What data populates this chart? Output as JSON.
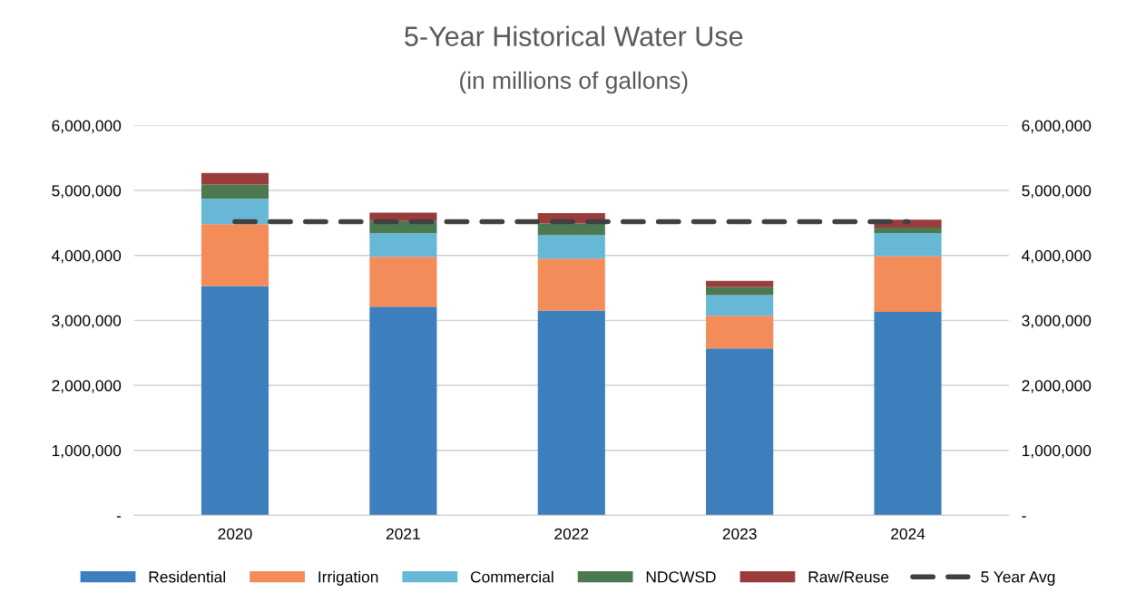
{
  "chart_data": {
    "type": "bar",
    "stacked": true,
    "title": "5-Year Historical Water Use",
    "subtitle": "(in millions of gallons)",
    "categories": [
      "2020",
      "2021",
      "2022",
      "2023",
      "2024"
    ],
    "series": [
      {
        "name": "Residential",
        "color": "#3d7ebd",
        "values": [
          3530000,
          3210000,
          3150000,
          2570000,
          3130000
        ]
      },
      {
        "name": "Irrigation",
        "color": "#f38c59",
        "values": [
          950000,
          770000,
          800000,
          500000,
          860000
        ]
      },
      {
        "name": "Commercial",
        "color": "#67b8d6",
        "values": [
          390000,
          360000,
          360000,
          320000,
          350000
        ]
      },
      {
        "name": "NDCWSD",
        "color": "#4c7a50",
        "values": [
          220000,
          190000,
          180000,
          120000,
          90000
        ]
      },
      {
        "name": "Raw/Reuse",
        "color": "#9a3c3c",
        "values": [
          180000,
          130000,
          160000,
          100000,
          120000
        ]
      },
      {
        "name": "5 Year Avg",
        "type": "line",
        "color": "#404040",
        "line_style": "dashed",
        "values": [
          4520000,
          4520000,
          4520000,
          4520000,
          4520000
        ]
      }
    ],
    "ylim": [
      0,
      6000000
    ],
    "yticks": [
      {
        "value": 0,
        "label": "-"
      },
      {
        "value": 1000000,
        "label": "1,000,000"
      },
      {
        "value": 2000000,
        "label": "2,000,000"
      },
      {
        "value": 3000000,
        "label": "3,000,000"
      },
      {
        "value": 4000000,
        "label": "4,000,000"
      },
      {
        "value": 5000000,
        "label": "5,000,000"
      },
      {
        "value": 6000000,
        "label": "6,000,000"
      }
    ],
    "y2lim": [
      0,
      6000000
    ],
    "y2ticks": [
      {
        "value": 0,
        "label": "-"
      },
      {
        "value": 1000000,
        "label": "1,000,000"
      },
      {
        "value": 2000000,
        "label": "2,000,000"
      },
      {
        "value": 3000000,
        "label": "3,000,000"
      },
      {
        "value": 4000000,
        "label": "4,000,000"
      },
      {
        "value": 5000000,
        "label": "5,000,000"
      },
      {
        "value": 6000000,
        "label": "6,000,000"
      }
    ],
    "grid": "y",
    "legend": "bottom"
  }
}
